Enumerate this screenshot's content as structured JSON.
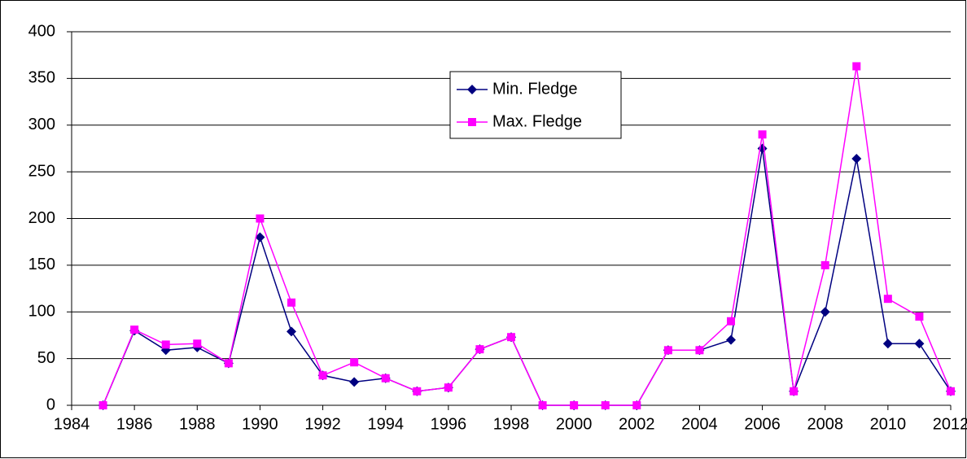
{
  "chart_data": {
    "type": "line",
    "x": [
      1985,
      1986,
      1987,
      1988,
      1989,
      1990,
      1991,
      1992,
      1993,
      1994,
      1995,
      1996,
      1997,
      1998,
      1999,
      2000,
      2001,
      2002,
      2003,
      2004,
      2005,
      2006,
      2007,
      2008,
      2009,
      2010,
      2011,
      2012
    ],
    "series": [
      {
        "name": "Min. Fledge",
        "color": "#000080",
        "marker": "diamond",
        "values": [
          0,
          80,
          59,
          62,
          45,
          180,
          79,
          32,
          25,
          29,
          15,
          19,
          60,
          73,
          0,
          0,
          0,
          0,
          59,
          59,
          70,
          275,
          15,
          100,
          264,
          66,
          66,
          15
        ]
      },
      {
        "name": "Max. Fledge",
        "color": "#ff00ff",
        "marker": "square",
        "values": [
          0,
          81,
          65,
          66,
          45,
          200,
          110,
          32,
          46,
          29,
          15,
          19,
          60,
          73,
          0,
          0,
          0,
          0,
          59,
          59,
          90,
          290,
          15,
          150,
          363,
          114,
          95,
          15
        ]
      }
    ],
    "xlim": [
      1984,
      2012
    ],
    "xticks": [
      1984,
      1986,
      1988,
      1990,
      1992,
      1994,
      1996,
      1998,
      2000,
      2002,
      2004,
      2006,
      2008,
      2010,
      2012
    ],
    "ylim": [
      0,
      400
    ],
    "yticks": [
      0,
      50,
      100,
      150,
      200,
      250,
      300,
      350,
      400
    ],
    "grid": true
  }
}
